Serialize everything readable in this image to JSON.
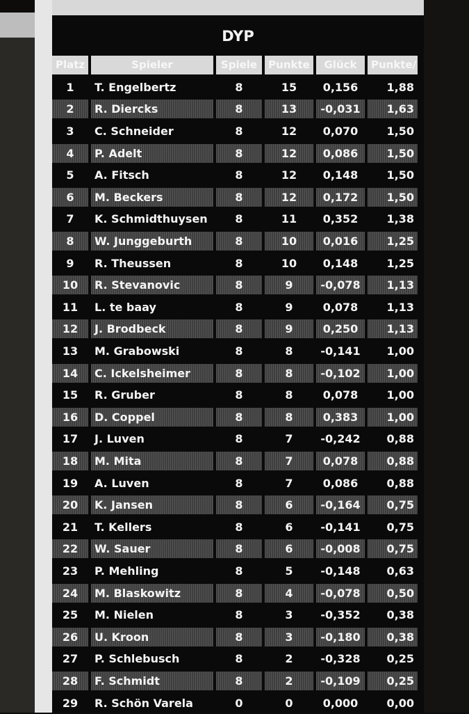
{
  "title": "DYP",
  "headers": [
    "Platz",
    "Spieler",
    "Spiele",
    "Punkte",
    "Glück",
    "Punkte/"
  ],
  "rows": [
    [
      "1",
      "T. Engelbertz",
      "8",
      "15",
      "0,156",
      "1,88"
    ],
    [
      "2",
      "R. Diercks",
      "8",
      "13",
      "-0,031",
      "1,63"
    ],
    [
      "3",
      "C. Schneider",
      "8",
      "12",
      "0,070",
      "1,50"
    ],
    [
      "4",
      "P. Adelt",
      "8",
      "12",
      "0,086",
      "1,50"
    ],
    [
      "5",
      "A. Fitsch",
      "8",
      "12",
      "0,148",
      "1,50"
    ],
    [
      "6",
      "M. Beckers",
      "8",
      "12",
      "0,172",
      "1,50"
    ],
    [
      "7",
      "K. Schmidthuysen",
      "8",
      "11",
      "0,352",
      "1,38"
    ],
    [
      "8",
      "W. Junggeburth",
      "8",
      "10",
      "0,016",
      "1,25"
    ],
    [
      "9",
      "R. Theussen",
      "8",
      "10",
      "0,148",
      "1,25"
    ],
    [
      "10",
      "R. Stevanovic",
      "8",
      "9",
      "-0,078",
      "1,13"
    ],
    [
      "11",
      "L. te baay",
      "8",
      "9",
      "0,078",
      "1,13"
    ],
    [
      "12",
      "J. Brodbeck",
      "8",
      "9",
      "0,250",
      "1,13"
    ],
    [
      "13",
      "M. Grabowski",
      "8",
      "8",
      "-0,141",
      "1,00"
    ],
    [
      "14",
      "C. Ickelsheimer",
      "8",
      "8",
      "-0,102",
      "1,00"
    ],
    [
      "15",
      "R. Gruber",
      "8",
      "8",
      "0,078",
      "1,00"
    ],
    [
      "16",
      "D. Coppel",
      "8",
      "8",
      "0,383",
      "1,00"
    ],
    [
      "17",
      "J. Luven",
      "8",
      "7",
      "-0,242",
      "0,88"
    ],
    [
      "18",
      "M. Mita",
      "8",
      "7",
      "0,078",
      "0,88"
    ],
    [
      "19",
      "A. Luven",
      "8",
      "7",
      "0,086",
      "0,88"
    ],
    [
      "20",
      "K. Jansen",
      "8",
      "6",
      "-0,164",
      "0,75"
    ],
    [
      "21",
      "T. Kellers",
      "8",
      "6",
      "-0,141",
      "0,75"
    ],
    [
      "22",
      "W. Sauer",
      "8",
      "6",
      "-0,008",
      "0,75"
    ],
    [
      "23",
      "P. Mehling",
      "8",
      "5",
      "-0,148",
      "0,63"
    ],
    [
      "24",
      "M. Blaskowitz",
      "8",
      "4",
      "-0,078",
      "0,50"
    ],
    [
      "25",
      "M. Nielen",
      "8",
      "3",
      "-0,352",
      "0,38"
    ],
    [
      "26",
      "U. Kroon",
      "8",
      "3",
      "-0,180",
      "0,38"
    ],
    [
      "27",
      "P. Schlebusch",
      "8",
      "2",
      "-0,328",
      "0,25"
    ],
    [
      "28",
      "F. Schmidt",
      "8",
      "2",
      "-0,109",
      "0,25"
    ],
    [
      "29",
      "R. Schön Varela",
      "0",
      "0",
      "0,000",
      "0,00"
    ]
  ]
}
